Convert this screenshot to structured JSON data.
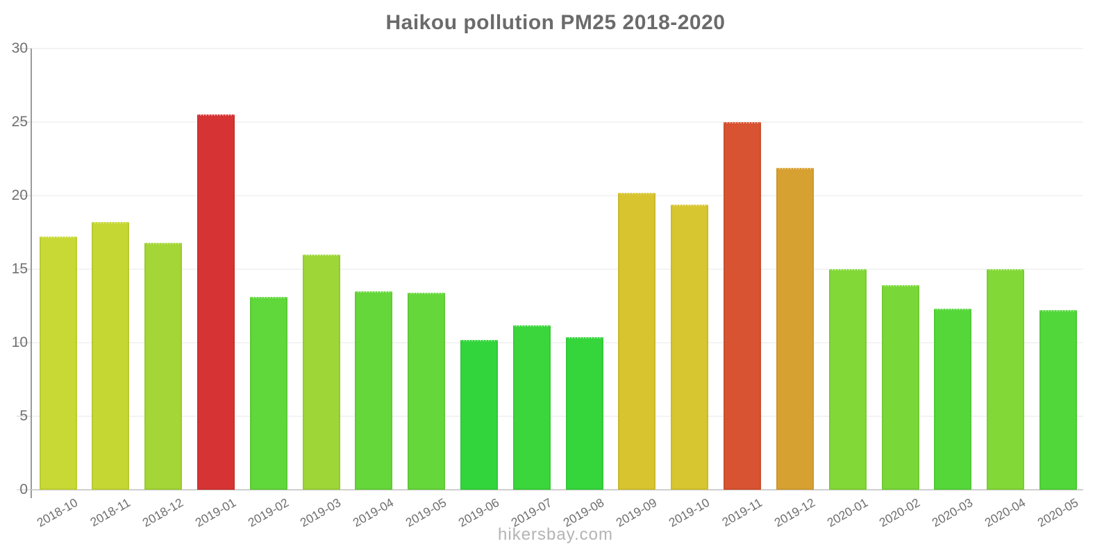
{
  "title": "Haikou pollution PM25 2018-2020",
  "watermark": "hikersbay.com",
  "colors": {
    "title_text": "#6b6b6b",
    "axis_label_text": "#707070",
    "x_label_text": "#6e6e6e",
    "y_axis_line": "#9a9a9a",
    "x_axis_line": "#cfcfcf",
    "gridline": "#f3f3f3",
    "watermark_text": "#b4b4b4",
    "background": "#ffffff"
  },
  "chart_data": {
    "type": "bar",
    "title": "Haikou pollution PM25 2018-2020",
    "xlabel": "",
    "ylabel": "",
    "ylim": [
      0,
      30
    ],
    "yticks": [
      0,
      5,
      10,
      15,
      20,
      25,
      30
    ],
    "grid": "faint horizontal gridlines at each y tick",
    "legend": "none",
    "categories": [
      "2018-10",
      "2018-11",
      "2018-12",
      "2019-01",
      "2019-02",
      "2019-03",
      "2019-04",
      "2019-05",
      "2019-06",
      "2019-07",
      "2019-08",
      "2019-09",
      "2019-10",
      "2019-11",
      "2019-12",
      "2020-01",
      "2020-02",
      "2020-03",
      "2020-04",
      "2020-05"
    ],
    "values": [
      17.2,
      18.2,
      16.8,
      25.5,
      13.1,
      16.0,
      13.5,
      13.4,
      10.2,
      11.2,
      10.4,
      20.2,
      19.4,
      25.0,
      21.9,
      15.0,
      13.9,
      12.3,
      15.0,
      12.2
    ],
    "bar_colors": [
      "#c8d834",
      "#c4d733",
      "#a3d636",
      "#d63434",
      "#60d73a",
      "#9dd636",
      "#65d73a",
      "#65d73a",
      "#33d53c",
      "#3bd63b",
      "#35d53c",
      "#d7c42f",
      "#d7c630",
      "#d75331",
      "#d7a132",
      "#82d837",
      "#79d838",
      "#55d73a",
      "#82d837",
      "#52d73a"
    ]
  }
}
